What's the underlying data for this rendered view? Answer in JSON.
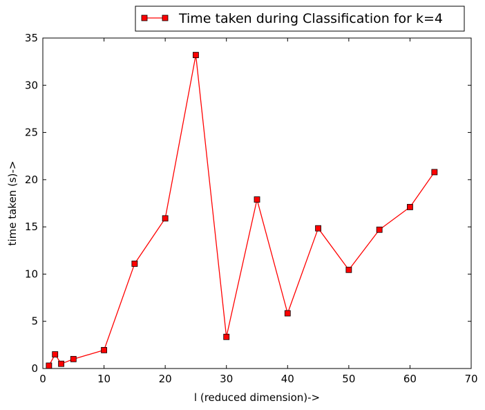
{
  "chart_data": {
    "type": "line",
    "title": "",
    "xlabel": "l (reduced dimension)->",
    "ylabel": "time taken (s)->",
    "xlim": [
      0,
      70
    ],
    "ylim": [
      0,
      35
    ],
    "xticks": [
      0,
      10,
      20,
      30,
      40,
      50,
      60,
      70
    ],
    "yticks": [
      0,
      5,
      10,
      15,
      20,
      25,
      30,
      35
    ],
    "grid": false,
    "legend_position": "top-right",
    "series": [
      {
        "name": "Time taken during Classification for k=4",
        "color": "#ff0000",
        "marker": "square",
        "x": [
          1,
          2,
          3,
          5,
          10,
          15,
          20,
          25,
          30,
          35,
          40,
          45,
          50,
          55,
          60,
          64
        ],
        "y": [
          0.3,
          1.5,
          0.5,
          1.0,
          1.95,
          11.1,
          15.9,
          33.2,
          3.35,
          17.9,
          5.85,
          14.85,
          10.45,
          14.7,
          17.1,
          20.8
        ]
      }
    ]
  }
}
